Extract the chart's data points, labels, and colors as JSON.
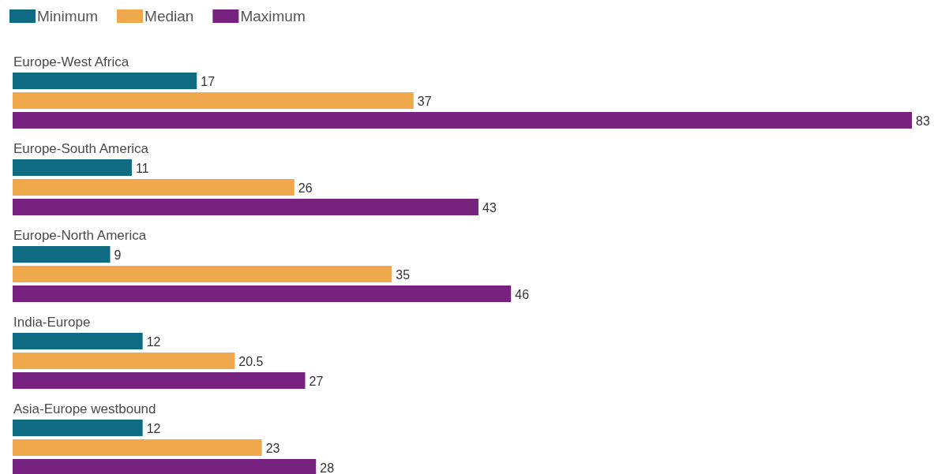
{
  "chart_data": {
    "type": "bar",
    "orientation": "horizontal",
    "categories": [
      "Europe-West Africa",
      "Europe-South America",
      "Europe-North America",
      "India-Europe",
      "Asia-Europe westbound"
    ],
    "series": [
      {
        "name": "Minimum",
        "color": "#0e6b82",
        "values": [
          17,
          11,
          9,
          12,
          12
        ]
      },
      {
        "name": "Median",
        "color": "#f0a84c",
        "values": [
          37,
          26,
          35,
          20.5,
          23
        ]
      },
      {
        "name": "Maximum",
        "color": "#76227e",
        "values": [
          83,
          43,
          46,
          27,
          28
        ]
      }
    ],
    "data_labels": true,
    "legend": "top left"
  }
}
